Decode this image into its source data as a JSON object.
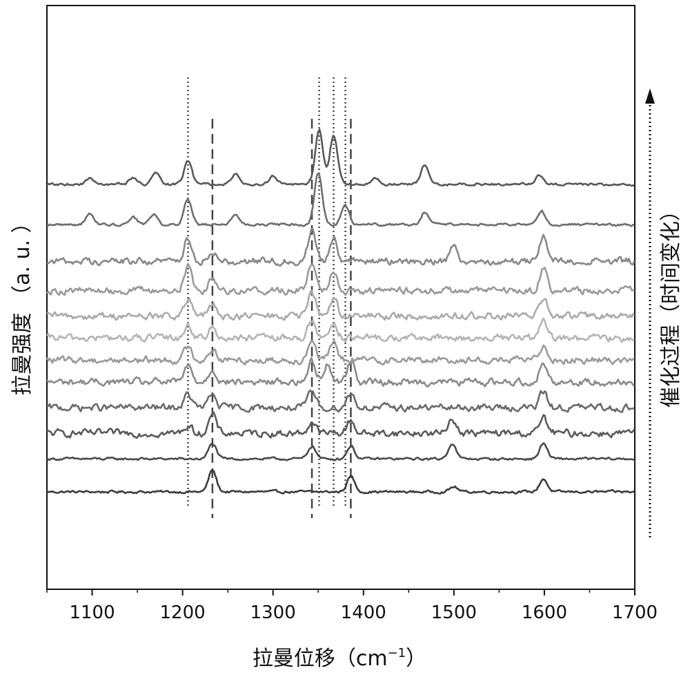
{
  "chart_data": {
    "type": "line",
    "title": "",
    "xlabel": "拉曼位移（cm",
    "xlabel_sup": "−1",
    "xlabel_close": "）",
    "ylabel": "拉曼强度 （a. u. ）",
    "right_label": "催化过程（时间变化）",
    "xlim": [
      1050,
      1700
    ],
    "x_ticks": [
      1100,
      1200,
      1300,
      1400,
      1500,
      1600,
      1700
    ],
    "ylim": [
      0,
      12
    ],
    "grid": false,
    "legend": "none",
    "reference_lines_dotted": [
      1206,
      1351,
      1367,
      1380
    ],
    "reference_lines_dashed": [
      1233,
      1343,
      1386
    ],
    "series": [
      {
        "color": "#3c3c3c",
        "offset": 0.0,
        "peaks": [
          [
            1233,
            0.42
          ],
          [
            1386,
            0.3
          ],
          [
            1500,
            0.1
          ],
          [
            1599,
            0.25
          ]
        ]
      },
      {
        "color": "#4a4a4a",
        "offset": 0.9,
        "peaks": [
          [
            1233,
            0.3
          ],
          [
            1343,
            0.25
          ],
          [
            1386,
            0.25
          ],
          [
            1498,
            0.3
          ],
          [
            1599,
            0.3
          ]
        ]
      },
      {
        "color": "#5a5a5a",
        "offset": 1.6,
        "peaks": [
          [
            1206,
            0.15
          ],
          [
            1233,
            0.35
          ],
          [
            1343,
            0.22
          ],
          [
            1386,
            0.25
          ],
          [
            1498,
            0.3
          ],
          [
            1599,
            0.3
          ]
        ]
      },
      {
        "color": "#6a6a6a",
        "offset": 2.3,
        "peaks": [
          [
            1206,
            0.25
          ],
          [
            1233,
            0.25
          ],
          [
            1343,
            0.3
          ],
          [
            1386,
            0.28
          ],
          [
            1599,
            0.3
          ]
        ]
      },
      {
        "color": "#8a8a8a",
        "offset": 3.0,
        "peaks": [
          [
            1206,
            0.3
          ],
          [
            1233,
            0.25
          ],
          [
            1343,
            0.4
          ],
          [
            1360,
            0.35
          ],
          [
            1386,
            0.4
          ],
          [
            1599,
            0.35
          ]
        ]
      },
      {
        "color": "#9a9a9a",
        "offset": 3.6,
        "peaks": [
          [
            1206,
            0.25
          ],
          [
            1233,
            0.22
          ],
          [
            1343,
            0.4
          ],
          [
            1367,
            0.3
          ],
          [
            1599,
            0.3
          ]
        ]
      },
      {
        "color": "#b4b4b4",
        "offset": 4.2,
        "peaks": [
          [
            1206,
            0.25
          ],
          [
            1233,
            0.2
          ],
          [
            1343,
            0.35
          ],
          [
            1367,
            0.3
          ],
          [
            1599,
            0.3
          ]
        ]
      },
      {
        "color": "#aaaaaa",
        "offset": 4.8,
        "peaks": [
          [
            1206,
            0.3
          ],
          [
            1233,
            0.2
          ],
          [
            1343,
            0.45
          ],
          [
            1367,
            0.35
          ],
          [
            1599,
            0.35
          ]
        ]
      },
      {
        "color": "#999999",
        "offset": 5.5,
        "peaks": [
          [
            1206,
            0.45
          ],
          [
            1233,
            0.25
          ],
          [
            1343,
            0.55
          ],
          [
            1367,
            0.4
          ],
          [
            1599,
            0.4
          ]
        ]
      },
      {
        "color": "#888888",
        "offset": 6.3,
        "peaks": [
          [
            1206,
            0.45
          ],
          [
            1233,
            0.2
          ],
          [
            1343,
            0.6
          ],
          [
            1367,
            0.45
          ],
          [
            1500,
            0.3
          ],
          [
            1599,
            0.5
          ]
        ]
      },
      {
        "color": "#6e6e6e",
        "offset": 7.3,
        "peaks": [
          [
            1097,
            0.2
          ],
          [
            1145,
            0.15
          ],
          [
            1168,
            0.2
          ],
          [
            1206,
            0.5
          ],
          [
            1258,
            0.2
          ],
          [
            1350,
            1.0
          ],
          [
            1380,
            0.35
          ],
          [
            1468,
            0.25
          ],
          [
            1597,
            0.25
          ]
        ]
      },
      {
        "color": "#585858",
        "offset": 8.4,
        "peaks": [
          [
            1097,
            0.1
          ],
          [
            1145,
            0.12
          ],
          [
            1170,
            0.25
          ],
          [
            1206,
            0.45
          ],
          [
            1258,
            0.2
          ],
          [
            1300,
            0.15
          ],
          [
            1351,
            1.05
          ],
          [
            1367,
            0.95
          ],
          [
            1413,
            0.12
          ],
          [
            1468,
            0.38
          ],
          [
            1595,
            0.18
          ]
        ]
      }
    ]
  }
}
